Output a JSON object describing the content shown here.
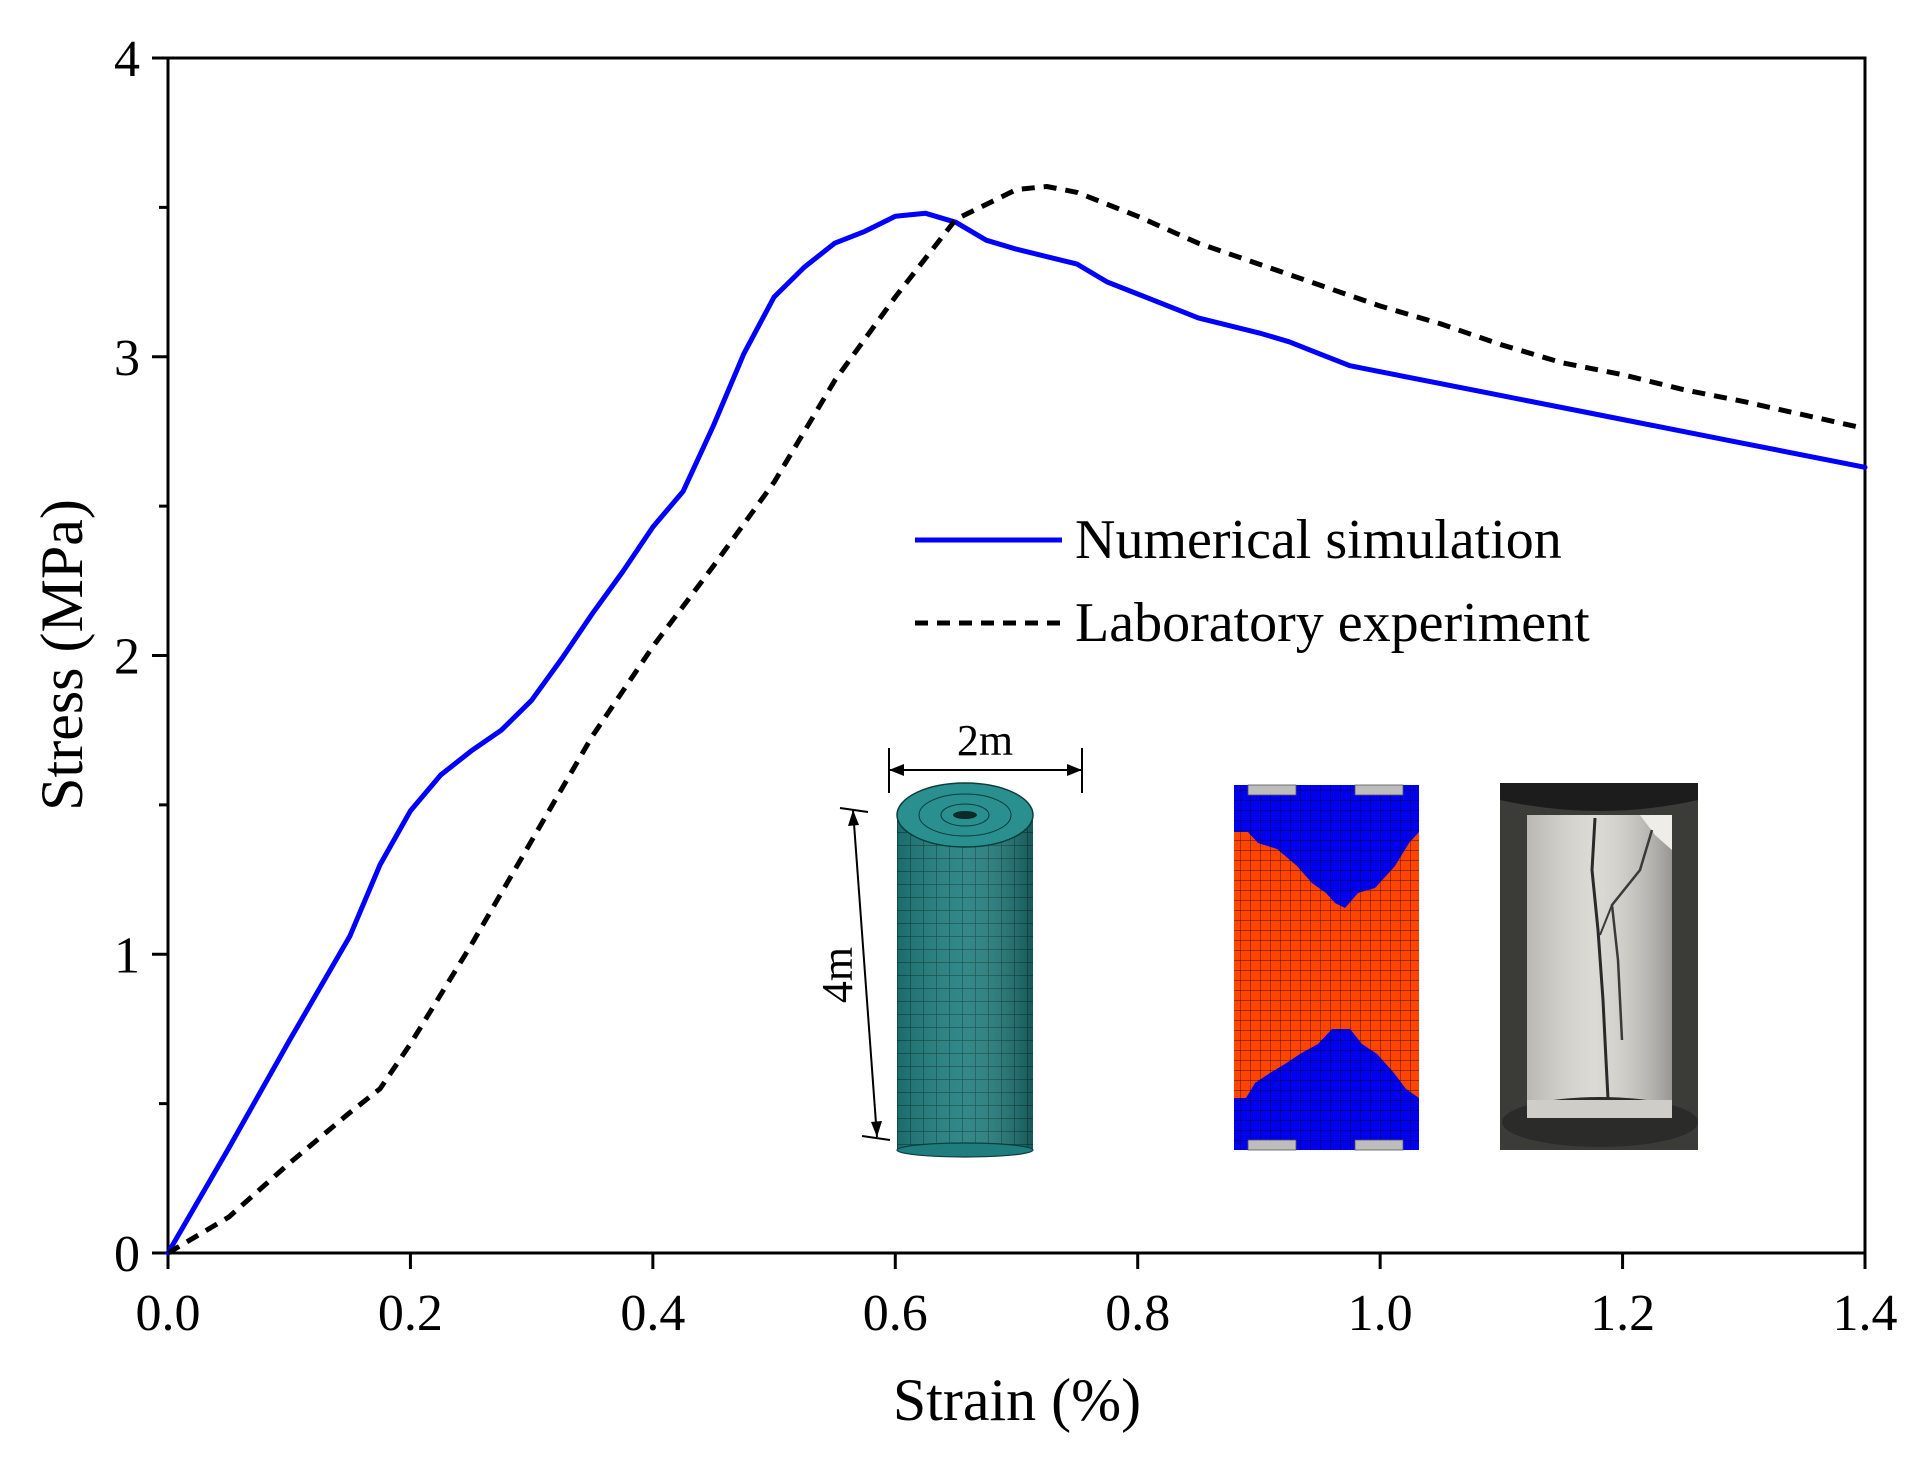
{
  "chart_data": {
    "type": "line",
    "title": "",
    "xlabel": "Strain (%)",
    "ylabel": "Stress (MPa)",
    "xlim": [
      0.0,
      1.4
    ],
    "ylim": [
      0,
      4
    ],
    "x_ticks": [
      0.0,
      0.2,
      0.4,
      0.6,
      0.8,
      1.0,
      1.2,
      1.4
    ],
    "x_tick_labels": [
      "0.0",
      "0.2",
      "0.4",
      "0.6",
      "0.8",
      "1.0",
      "1.2",
      "1.4"
    ],
    "y_ticks": [
      0,
      1,
      2,
      3,
      4
    ],
    "y_tick_labels": [
      "0",
      "1",
      "2",
      "3",
      "4"
    ],
    "y_minor_ticks": [
      0.5,
      1.5,
      2.5,
      3.5
    ],
    "grid": false,
    "legend_position": "center-right",
    "series": [
      {
        "name": "Numerical simulation",
        "color": "#0000ff",
        "style": "solid",
        "x": [
          0.0,
          0.05,
          0.1,
          0.15,
          0.175,
          0.2,
          0.225,
          0.25,
          0.275,
          0.3,
          0.325,
          0.35,
          0.375,
          0.4,
          0.425,
          0.45,
          0.475,
          0.5,
          0.525,
          0.55,
          0.575,
          0.6,
          0.625,
          0.65,
          0.675,
          0.7,
          0.75,
          0.775,
          0.8,
          0.85,
          0.9,
          0.925,
          0.95,
          0.975,
          1.0,
          1.1,
          1.175,
          1.2,
          1.25,
          1.3,
          1.4
        ],
        "y": [
          0.0,
          0.35,
          0.71,
          1.06,
          1.3,
          1.48,
          1.6,
          1.68,
          1.75,
          1.85,
          1.99,
          2.14,
          2.28,
          2.43,
          2.55,
          2.77,
          3.01,
          3.2,
          3.3,
          3.38,
          3.42,
          3.47,
          3.48,
          3.45,
          3.39,
          3.36,
          3.31,
          3.25,
          3.21,
          3.13,
          3.08,
          3.05,
          3.01,
          2.97,
          2.95,
          2.87,
          2.81,
          2.79,
          2.75,
          2.71,
          2.63
        ]
      },
      {
        "name": "Laboratory experiment",
        "color": "#000000",
        "style": "dashed",
        "x": [
          0.0,
          0.05,
          0.1,
          0.15,
          0.175,
          0.2,
          0.25,
          0.3,
          0.35,
          0.4,
          0.45,
          0.5,
          0.55,
          0.6,
          0.65,
          0.7,
          0.725,
          0.75,
          0.8,
          0.85,
          0.9,
          0.95,
          1.0,
          1.05,
          1.1,
          1.15,
          1.2,
          1.25,
          1.3,
          1.4
        ],
        "y": [
          0.0,
          0.12,
          0.3,
          0.47,
          0.55,
          0.7,
          1.03,
          1.38,
          1.73,
          2.03,
          2.3,
          2.58,
          2.92,
          3.2,
          3.46,
          3.56,
          3.57,
          3.55,
          3.47,
          3.38,
          3.31,
          3.24,
          3.17,
          3.11,
          3.04,
          2.98,
          2.94,
          2.89,
          2.85,
          2.76
        ]
      }
    ],
    "annotations": {
      "diameter_label": "2m",
      "height_label": "4m"
    }
  }
}
